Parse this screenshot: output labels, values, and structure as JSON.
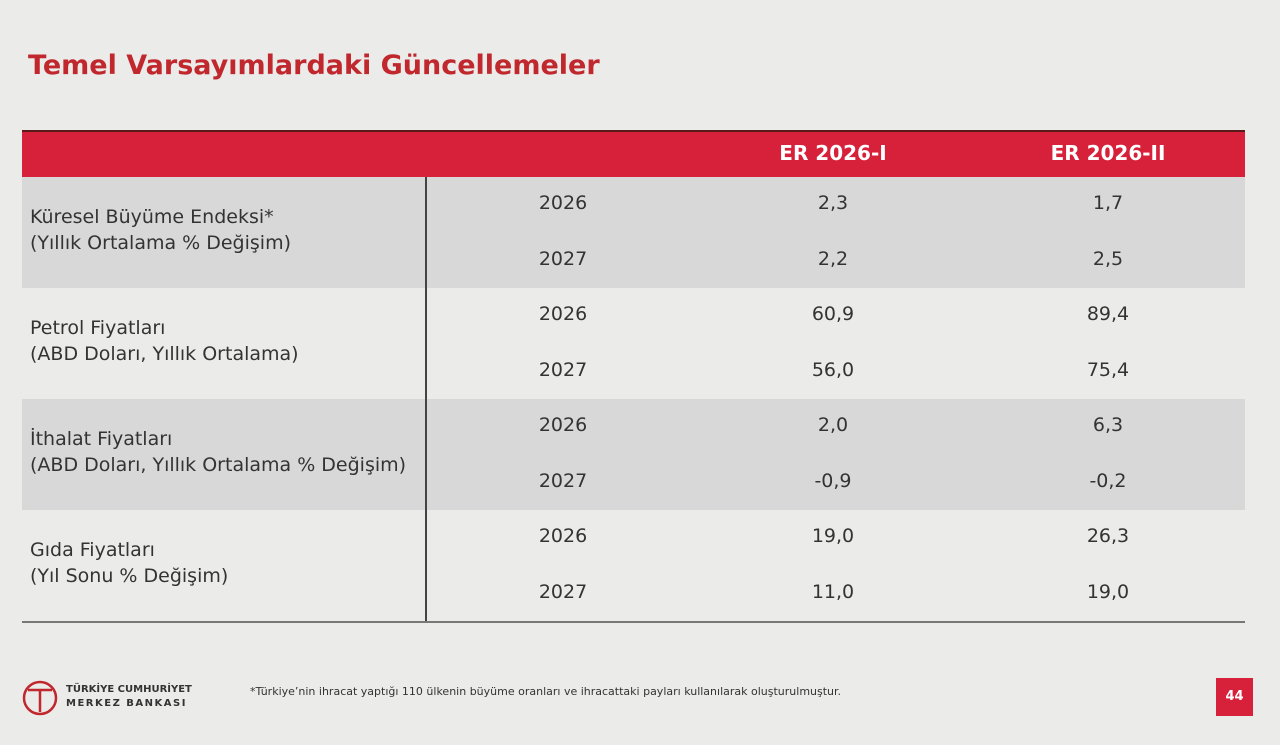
{
  "title": "Temel Varsayımlardaki Güncellemeler",
  "table": {
    "columns": [
      "ER 2026-I",
      "ER 2026-II"
    ],
    "groups": [
      {
        "label": [
          "Küresel Büyüme Endeksi*",
          "(Yıllık Ortalama % Değişim)"
        ],
        "rows": [
          [
            "2026",
            "2,3",
            "1,7"
          ],
          [
            "2027",
            "2,2",
            "2,5"
          ]
        ]
      },
      {
        "label": [
          "Petrol Fiyatları",
          "(ABD Doları, Yıllık Ortalama)"
        ],
        "rows": [
          [
            "2026",
            "60,9",
            "89,4"
          ],
          [
            "2027",
            "56,0",
            "75,4"
          ]
        ]
      },
      {
        "label": [
          "İthalat Fiyatları",
          "(ABD Doları, Yıllık Ortalama % Değişim)"
        ],
        "rows": [
          [
            "2026",
            "2,0",
            "6,3"
          ],
          [
            "2027",
            "-0,9",
            "-0,2"
          ]
        ]
      },
      {
        "label": [
          "Gıda Fiyatları",
          "(Yıl Sonu % Değişim)"
        ],
        "rows": [
          [
            "2026",
            "19,0",
            "26,3"
          ],
          [
            "2027",
            "11,0",
            "19,0"
          ]
        ]
      }
    ]
  },
  "footer": {
    "logo": [
      "TÜRKİYE CUMHURİYET",
      "MERKEZ BANKASI"
    ],
    "note": "*Türkiye’nin ihracat yaptığı 110 ülkenin büyüme oranları ve ihracattaki payları kullanılarak oluşturulmuştur.",
    "page": "44"
  }
}
